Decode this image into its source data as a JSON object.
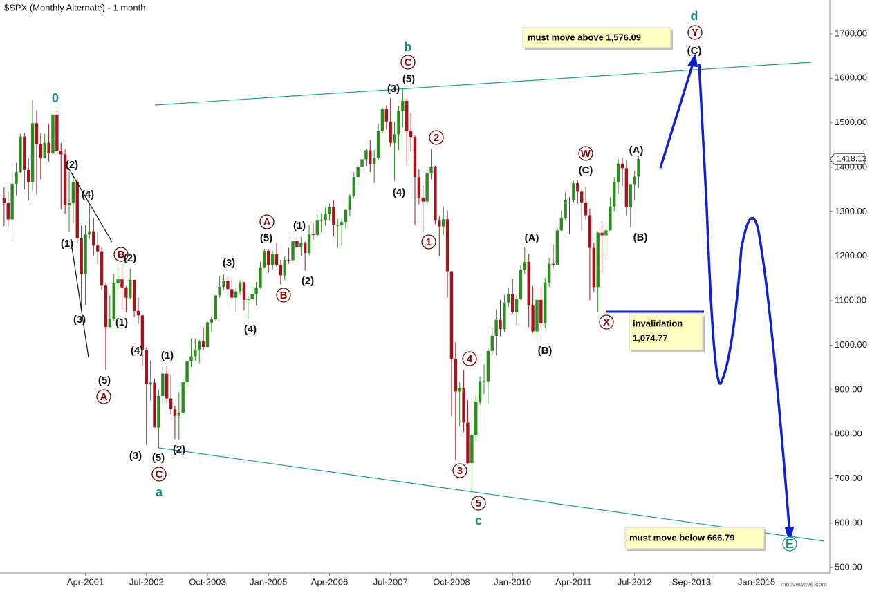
{
  "chart_data": {
    "type": "candlestick",
    "title": "$SPX (Monthly Alternate) - 1 month",
    "x": [
      "1999-08",
      "1999-09",
      "1999-10",
      "1999-11",
      "1999-12",
      "2000-01",
      "2000-02",
      "2000-03",
      "2000-04",
      "2000-05",
      "2000-06",
      "2000-07",
      "2000-08",
      "2000-09",
      "2000-10",
      "2000-11",
      "2000-12",
      "2001-01",
      "2001-02",
      "2001-03",
      "2001-04",
      "2001-05",
      "2001-06",
      "2001-07",
      "2001-08",
      "2001-09",
      "2001-10",
      "2001-11",
      "2001-12",
      "2002-01",
      "2002-02",
      "2002-03",
      "2002-04",
      "2002-05",
      "2002-06",
      "2002-07",
      "2002-08",
      "2002-09",
      "2002-10",
      "2002-11",
      "2002-12",
      "2003-01",
      "2003-02",
      "2003-03",
      "2003-04",
      "2003-05",
      "2003-06",
      "2003-07",
      "2003-08",
      "2003-09",
      "2003-10",
      "2003-11",
      "2003-12",
      "2004-01",
      "2004-02",
      "2004-03",
      "2004-04",
      "2004-05",
      "2004-06",
      "2004-07",
      "2004-08",
      "2004-09",
      "2004-10",
      "2004-11",
      "2004-12",
      "2005-01",
      "2005-02",
      "2005-03",
      "2005-04",
      "2005-05",
      "2005-06",
      "2005-07",
      "2005-08",
      "2005-09",
      "2005-10",
      "2005-11",
      "2005-12",
      "2006-01",
      "2006-02",
      "2006-03",
      "2006-04",
      "2006-05",
      "2006-06",
      "2006-07",
      "2006-08",
      "2006-09",
      "2006-10",
      "2006-11",
      "2006-12",
      "2007-01",
      "2007-02",
      "2007-03",
      "2007-04",
      "2007-05",
      "2007-06",
      "2007-07",
      "2007-08",
      "2007-09",
      "2007-10",
      "2007-11",
      "2007-12",
      "2008-01",
      "2008-02",
      "2008-03",
      "2008-04",
      "2008-05",
      "2008-06",
      "2008-07",
      "2008-08",
      "2008-09",
      "2008-10",
      "2008-11",
      "2008-12",
      "2009-01",
      "2009-02",
      "2009-03",
      "2009-04",
      "2009-05",
      "2009-06",
      "2009-07",
      "2009-08",
      "2009-09",
      "2009-10",
      "2009-11",
      "2009-12",
      "2010-01",
      "2010-02",
      "2010-03",
      "2010-04",
      "2010-05",
      "2010-06",
      "2010-07",
      "2010-08",
      "2010-09",
      "2010-10",
      "2010-11",
      "2010-12",
      "2011-01",
      "2011-02",
      "2011-03",
      "2011-04",
      "2011-05",
      "2011-06",
      "2011-07",
      "2011-08",
      "2011-09",
      "2011-10",
      "2011-11",
      "2011-12",
      "2012-01",
      "2012-02",
      "2012-03",
      "2012-04",
      "2012-05",
      "2012-06",
      "2012-07",
      "2012-08"
    ],
    "open": [
      1330,
      1320,
      1283,
      1363,
      1389,
      1469,
      1394,
      1366,
      1499,
      1452,
      1421,
      1455,
      1431,
      1518,
      1437,
      1429,
      1315,
      1320,
      1366,
      1240,
      1160,
      1249,
      1256,
      1224,
      1211,
      1134,
      1041,
      1060,
      1139,
      1148,
      1130,
      1107,
      1147,
      1077,
      1067,
      990,
      912,
      916,
      815,
      886,
      936,
      880,
      856,
      841,
      848,
      917,
      964,
      975,
      990,
      1008,
      996,
      1051,
      1058,
      1112,
      1131,
      1145,
      1126,
      1107,
      1121,
      1141,
      1102,
      1104,
      1115,
      1130,
      1174,
      1212,
      1181,
      1204,
      1181,
      1157,
      1192,
      1191,
      1234,
      1220,
      1229,
      1207,
      1249,
      1248,
      1280,
      1281,
      1295,
      1311,
      1270,
      1270,
      1277,
      1304,
      1336,
      1378,
      1401,
      1418,
      1438,
      1407,
      1421,
      1482,
      1531,
      1503,
      1455,
      1474,
      1527,
      1549,
      1481,
      1468,
      1378,
      1331,
      1323,
      1386,
      1400,
      1280,
      1267,
      1283,
      1166,
      969,
      896,
      903,
      826,
      735,
      798,
      873,
      919,
      919,
      987,
      1021,
      1057,
      1036,
      1096,
      1115,
      1074,
      1104,
      1169,
      1187,
      1089,
      1031,
      1102,
      1049,
      1141,
      1183,
      1181,
      1258,
      1286,
      1327,
      1326,
      1364,
      1345,
      1321,
      1292,
      1219,
      1131,
      1253,
      1247,
      1258,
      1312,
      1366,
      1408,
      1398,
      1310,
      1362,
      1379
    ],
    "high": [
      1355,
      1345,
      1388,
      1410,
      1475,
      1478,
      1420,
      1552,
      1528,
      1476,
      1475,
      1497,
      1525,
      1530,
      1455,
      1440,
      1390,
      1384,
      1376,
      1268,
      1270,
      1316,
      1286,
      1255,
      1220,
      1140,
      1112,
      1160,
      1173,
      1176,
      1133,
      1172,
      1147,
      1107,
      1070,
      995,
      965,
      925,
      900,
      951,
      954,
      935,
      864,
      895,
      924,
      966,
      1015,
      1015,
      1012,
      1040,
      1054,
      1063,
      1112,
      1155,
      1159,
      1163,
      1150,
      1128,
      1146,
      1143,
      1110,
      1131,
      1142,
      1188,
      1217,
      1217,
      1212,
      1229,
      1192,
      1200,
      1219,
      1245,
      1245,
      1243,
      1233,
      1270,
      1275,
      1294,
      1297,
      1310,
      1318,
      1326,
      1284,
      1284,
      1306,
      1340,
      1389,
      1407,
      1431,
      1441,
      1461,
      1438,
      1498,
      1535,
      1540,
      1555,
      1503,
      1538,
      1576.09,
      1554,
      1523,
      1471,
      1396,
      1359,
      1397,
      1440,
      1404,
      1292,
      1313,
      1303,
      1167,
      1007,
      918,
      944,
      876,
      833,
      888,
      930,
      957,
      993,
      1040,
      1081,
      1102,
      1113,
      1130,
      1150,
      1113,
      1180,
      1220,
      1205,
      1132,
      1120,
      1130,
      1151,
      1196,
      1227,
      1263,
      1302,
      1344,
      1333,
      1370,
      1371,
      1350,
      1356,
      1307,
      1230,
      1256,
      1277,
      1270,
      1333,
      1378,
      1419,
      1422,
      1415,
      1363,
      1392,
      1426
    ],
    "low": [
      1268,
      1264,
      1234,
      1337,
      1387,
      1350,
      1325,
      1346,
      1339,
      1373,
      1420,
      1413,
      1429,
      1434,
      1305,
      1295,
      1254,
      1274,
      1228,
      1081,
      1091,
      1240,
      1201,
      1183,
      1124,
      944,
      1039,
      1055,
      1124,
      1081,
      1074,
      1104,
      1064,
      1048,
      953,
      776,
      876,
      815,
      768,
      868,
      870,
      845,
      789,
      788,
      847,
      903,
      951,
      965,
      960,
      990,
      995,
      1031,
      1056,
      1106,
      1124,
      1088,
      1102,
      1076,
      1113,
      1078,
      1060,
      1101,
      1090,
      1127,
      1173,
      1163,
      1170,
      1176,
      1137,
      1146,
      1183,
      1191,
      1202,
      1202,
      1168,
      1202,
      1236,
      1245,
      1253,
      1268,
      1280,
      1245,
      1219,
      1224,
      1262,
      1290,
      1331,
      1360,
      1385,
      1403,
      1389,
      1364,
      1416,
      1476,
      1485,
      1446,
      1370,
      1439,
      1489,
      1406,
      1435,
      1270,
      1317,
      1256,
      1315,
      1373,
      1272,
      1200,
      1248,
      1107,
      840,
      741,
      818,
      805,
      733,
      666.79,
      784,
      866,
      890,
      869,
      979,
      978,
      1020,
      1030,
      1086,
      1071,
      1045,
      1101,
      1160,
      1041,
      1028,
      1011,
      1040,
      1039,
      1131,
      1173,
      1179,
      1257,
      1282,
      1250,
      1321,
      1318,
      1258,
      1283,
      1101,
      1120,
      1074.77,
      1159,
      1203,
      1258,
      1300,
      1340,
      1358,
      1292,
      1266,
      1325,
      1354
    ],
    "close": [
      1320,
      1283,
      1363,
      1389,
      1469,
      1394,
      1366,
      1499,
      1452,
      1421,
      1455,
      1431,
      1518,
      1437,
      1429,
      1315,
      1320,
      1366,
      1240,
      1160,
      1249,
      1256,
      1224,
      1211,
      1134,
      1041,
      1060,
      1139,
      1148,
      1130,
      1107,
      1147,
      1077,
      1067,
      990,
      912,
      916,
      815,
      886,
      936,
      880,
      856,
      841,
      848,
      917,
      964,
      975,
      990,
      1008,
      996,
      1051,
      1058,
      1112,
      1131,
      1145,
      1126,
      1107,
      1121,
      1141,
      1102,
      1104,
      1115,
      1130,
      1174,
      1212,
      1181,
      1204,
      1181,
      1157,
      1192,
      1191,
      1234,
      1220,
      1229,
      1207,
      1249,
      1248,
      1280,
      1281,
      1295,
      1311,
      1270,
      1270,
      1277,
      1304,
      1336,
      1378,
      1401,
      1418,
      1438,
      1407,
      1421,
      1482,
      1531,
      1503,
      1455,
      1474,
      1527,
      1549,
      1481,
      1468,
      1378,
      1331,
      1323,
      1386,
      1400,
      1280,
      1267,
      1283,
      1166,
      969,
      896,
      903,
      826,
      735,
      798,
      873,
      919,
      919,
      987,
      1021,
      1057,
      1036,
      1096,
      1115,
      1074,
      1104,
      1169,
      1187,
      1089,
      1031,
      1102,
      1049,
      1141,
      1183,
      1181,
      1258,
      1286,
      1327,
      1326,
      1364,
      1345,
      1321,
      1292,
      1219,
      1131,
      1253,
      1247,
      1258,
      1312,
      1366,
      1408,
      1398,
      1310,
      1362,
      1379,
      1418.13
    ],
    "up_color": "#2e8b22",
    "down_color": "#a3151c",
    "xlim": [
      "1999-07",
      "2016-07"
    ],
    "xticks": [
      {
        "value": "2001-04",
        "label": "Apr-2001"
      },
      {
        "value": "2002-07",
        "label": "Jul-2002"
      },
      {
        "value": "2003-10",
        "label": "Oct-2003"
      },
      {
        "value": "2005-01",
        "label": "Jan-2005"
      },
      {
        "value": "2006-04",
        "label": "Apr-2006"
      },
      {
        "value": "2007-07",
        "label": "Jul-2007"
      },
      {
        "value": "2008-10",
        "label": "Oct-2008"
      },
      {
        "value": "2010-01",
        "label": "Jan-2010"
      },
      {
        "value": "2011-04",
        "label": "Apr-2011"
      },
      {
        "value": "2012-07",
        "label": "Jul-2012"
      },
      {
        "value": "2013-09",
        "label": "Sep-2013"
      },
      {
        "value": "2015-01",
        "label": "Jan-2015"
      }
    ],
    "ylim": [
      488,
      1776
    ],
    "yticks": [
      {
        "value": 500,
        "label": "500.00"
      },
      {
        "value": 600,
        "label": "600.00"
      },
      {
        "value": 700,
        "label": "700.00"
      },
      {
        "value": 800,
        "label": "800.00"
      },
      {
        "value": 900,
        "label": "900.00"
      },
      {
        "value": 1000,
        "label": "1000.00"
      },
      {
        "value": 1100,
        "label": "1100.00"
      },
      {
        "value": 1200,
        "label": "1200.00"
      },
      {
        "value": 1300,
        "label": "1300.00"
      },
      {
        "value": 1400,
        "label": "1400.00"
      },
      {
        "value": 1500,
        "label": "1500.00"
      },
      {
        "value": 1600,
        "label": "1600.00"
      },
      {
        "value": 1700,
        "label": "1700.00"
      }
    ],
    "annotations": [
      "0",
      "(2)",
      "(4)",
      "(1)",
      "B",
      "(2)",
      "(3)",
      "(1)",
      "(4)",
      "(5)",
      "A",
      "(1)",
      "(3)",
      "(5)",
      "(2)",
      "C",
      "a",
      "(3)",
      "(4)",
      "A",
      "(5)",
      "(1)",
      "B",
      "(2)",
      "b",
      "C",
      "(5)",
      "(3)",
      "(4)",
      "2",
      "1",
      "4",
      "3",
      "5",
      "c",
      "(A)",
      "(B)",
      "W",
      "(C)",
      "(A)",
      "(B)",
      "X",
      "d",
      "Y",
      "(C)",
      "E"
    ],
    "notes": [
      "must move above 1,576.09",
      "invalidation",
      "1,074.77",
      "must move below 666.79"
    ],
    "watermark": "motivewave.com"
  }
}
